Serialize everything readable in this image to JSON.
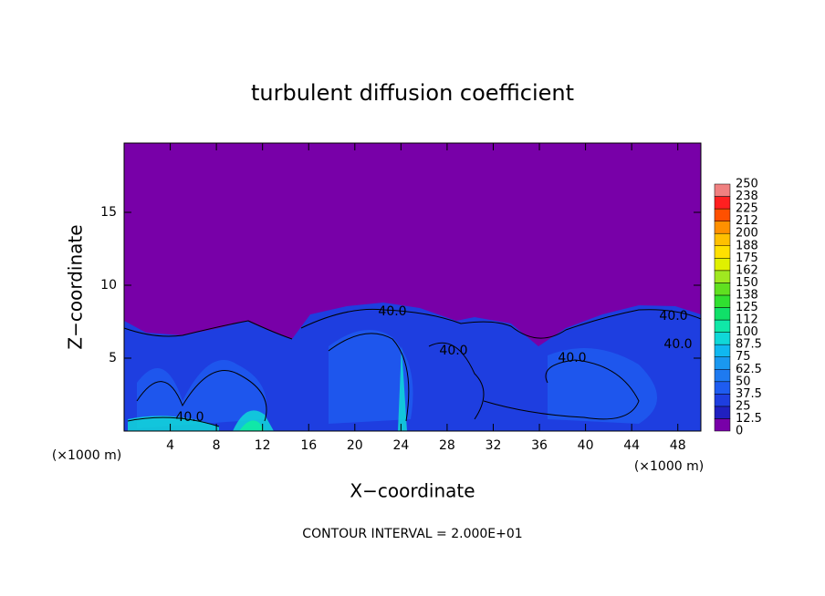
{
  "chart_data": {
    "type": "contour",
    "title": "turbulent diffusion coefficient",
    "xlabel": "X−coordinate",
    "ylabel": "Z−coordinate",
    "x_axis_unit": "(×1000 m)",
    "y_axis_unit": "(×1000 m)",
    "footer": "CONTOUR INTERVAL = 2.000E+01",
    "xlim": [
      0,
      50
    ],
    "ylim": [
      0,
      19.75
    ],
    "xticks": [
      4,
      8,
      12,
      16,
      20,
      24,
      28,
      32,
      36,
      40,
      44,
      48
    ],
    "yticks": [
      5,
      10,
      15
    ],
    "contour_labels": [
      "40.0",
      "40.0",
      "40.0",
      "40.0",
      "40.0",
      "40.0"
    ],
    "colorbar": {
      "ticks": [
        0,
        12.5,
        25,
        37.5,
        50,
        62.5,
        75,
        87.5,
        100,
        {
          "value": 112.5,
          "label": "112"
        },
        125,
        {
          "value": 137.5,
          "label": "138"
        },
        150,
        {
          "value": 162.5,
          "label": "162"
        },
        175,
        {
          "value": 187.5,
          "label": "188"
        },
        200,
        {
          "value": 212.5,
          "label": "212"
        },
        225,
        {
          "value": 237.5,
          "label": "238"
        },
        250
      ],
      "colors": [
        "#7800a8",
        "#2020c0",
        "#1e3ee0",
        "#1e5cf0",
        "#1e7af0",
        "#1a98f0",
        "#10b8f0",
        "#10d8d8",
        "#10e8a8",
        "#10e068",
        "#30e030",
        "#60e020",
        "#a0e820",
        "#e0f000",
        "#ffe000",
        "#ffc000",
        "#ff9000",
        "#ff5000",
        "#ff2020",
        "#f08080"
      ]
    }
  }
}
